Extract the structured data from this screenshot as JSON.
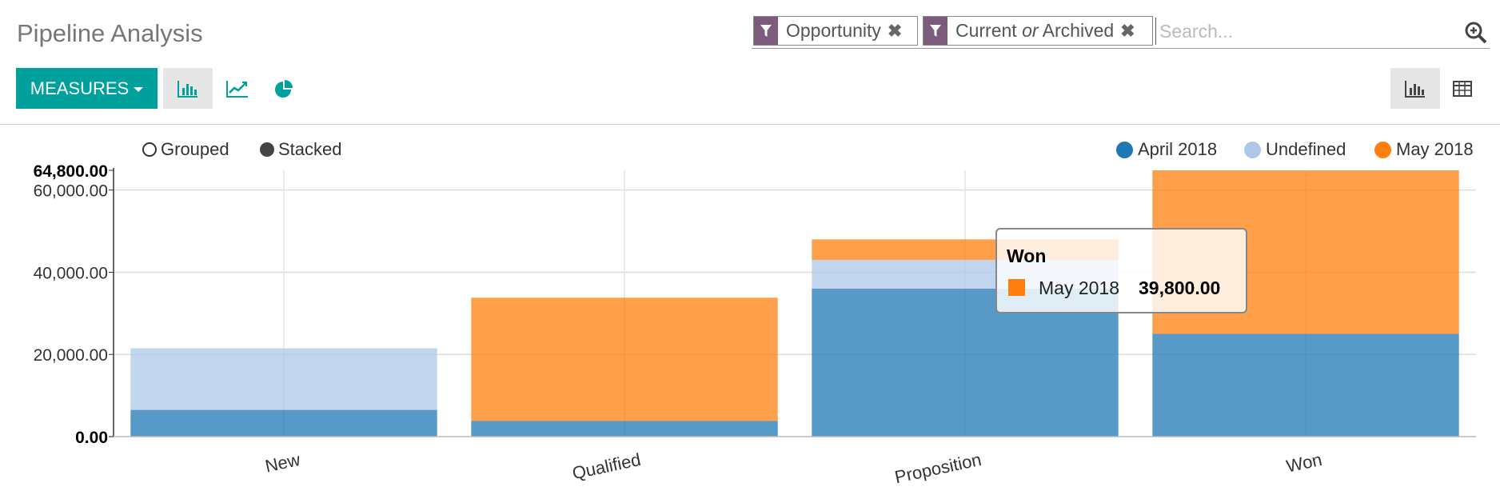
{
  "page": {
    "title": "Pipeline Analysis"
  },
  "search": {
    "facets": [
      {
        "label": "Opportunity"
      },
      {
        "label_a": "Current",
        "label_or": "or",
        "label_b": "Archived"
      }
    ],
    "placeholder": "Search..."
  },
  "toolbar": {
    "measures_label": "MEASURES"
  },
  "icons": {
    "filter": "filter-icon",
    "remove": "close-icon",
    "search": "search-icon",
    "bar_chart": "bar-chart-icon",
    "line_chart": "line-chart-icon",
    "pie_chart": "pie-chart-icon",
    "graph_view": "graph-view-icon",
    "pivot_view": "pivot-table-icon"
  },
  "colors": {
    "accent": "#00a09d",
    "filter": "#7c5b7c"
  },
  "chart_options": {
    "grouped_label": "Grouped",
    "stacked_label": "Stacked",
    "selected": "stacked"
  },
  "tooltip": {
    "title": "Won",
    "series": "May 2018",
    "value": "39,800.00"
  },
  "chart_data": {
    "type": "bar",
    "stacked": true,
    "categories": [
      "New",
      "Qualified",
      "Proposition",
      "Won"
    ],
    "series": [
      {
        "name": "April 2018",
        "color": "#1f77b4",
        "values": [
          6500,
          3800,
          36000,
          25000
        ]
      },
      {
        "name": "Undefined",
        "color": "#aec7e8",
        "values": [
          15000,
          0,
          7000,
          0
        ]
      },
      {
        "name": "May 2018",
        "color": "#ff7f0e",
        "values": [
          0,
          30000,
          5000,
          39800
        ]
      }
    ],
    "ylim": [
      0,
      64800
    ],
    "yticks": [
      0,
      20000,
      40000,
      60000,
      64800
    ],
    "ytick_labels": [
      "0.00",
      "20,000.00",
      "40,000.00",
      "60,000.00",
      "64,800.00"
    ],
    "legend_position": "top-right",
    "grid": true
  }
}
